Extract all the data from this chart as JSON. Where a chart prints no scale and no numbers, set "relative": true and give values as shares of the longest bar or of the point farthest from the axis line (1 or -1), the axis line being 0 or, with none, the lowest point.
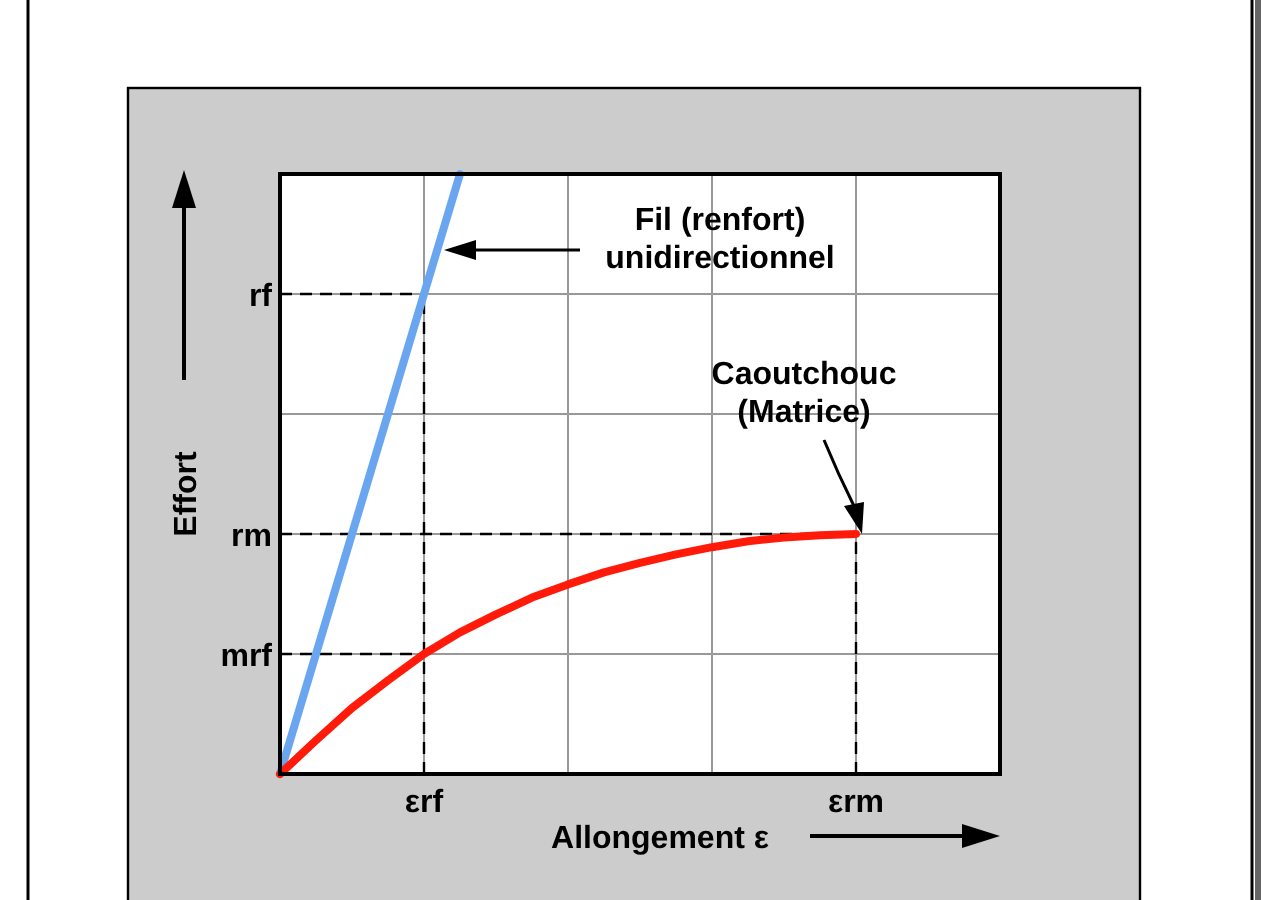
{
  "chart_data": {
    "type": "line",
    "xlabel": "Allongement ε",
    "ylabel": "Effort",
    "relative": true,
    "categories": [
      null,
      null,
      null,
      null,
      "εrf",
      null,
      null,
      null,
      null,
      null,
      null,
      null,
      null,
      null,
      null,
      null,
      "εrm",
      null,
      null,
      null,
      null
    ],
    "grid": true,
    "marker": "none",
    "series": [
      {
        "color": "#6aa6f0",
        "values": [
          0,
          0.2,
          0.4,
          0.6,
          0.8,
          1,
          null,
          null,
          null,
          null,
          null,
          null,
          null,
          null,
          null,
          null,
          null,
          null,
          null,
          null,
          null
        ]
      },
      {
        "color": "#ff1a0a",
        "values": [
          0,
          0.056,
          0.11,
          0.156,
          0.2,
          0.236,
          0.266,
          0.294,
          0.316,
          0.336,
          0.352,
          0.366,
          0.378,
          0.388,
          0.394,
          0.398,
          0.4,
          null,
          null,
          null,
          null
        ]
      }
    ],
    "ref_lines": [
      {
        "axis": "x",
        "value": "εrf",
        "line_style": "dashed",
        "color": "#000000"
      },
      {
        "axis": "x",
        "value": "εrm",
        "line_style": "dashed",
        "color": "#000000"
      },
      {
        "axis": "y",
        "value": 0.8,
        "label": "rf",
        "line_style": "dashed",
        "color": "#000000"
      },
      {
        "axis": "y",
        "value": 0.4,
        "label": "rm",
        "line_style": "dashed",
        "color": "#000000"
      },
      {
        "axis": "y",
        "value": 0.2,
        "label": "mrf",
        "line_style": "dashed",
        "color": "#000000"
      }
    ],
    "annotations": [
      "Fil (renfort)\nunidirectionnel",
      "Caoutchouc\n(Matrice)"
    ]
  }
}
